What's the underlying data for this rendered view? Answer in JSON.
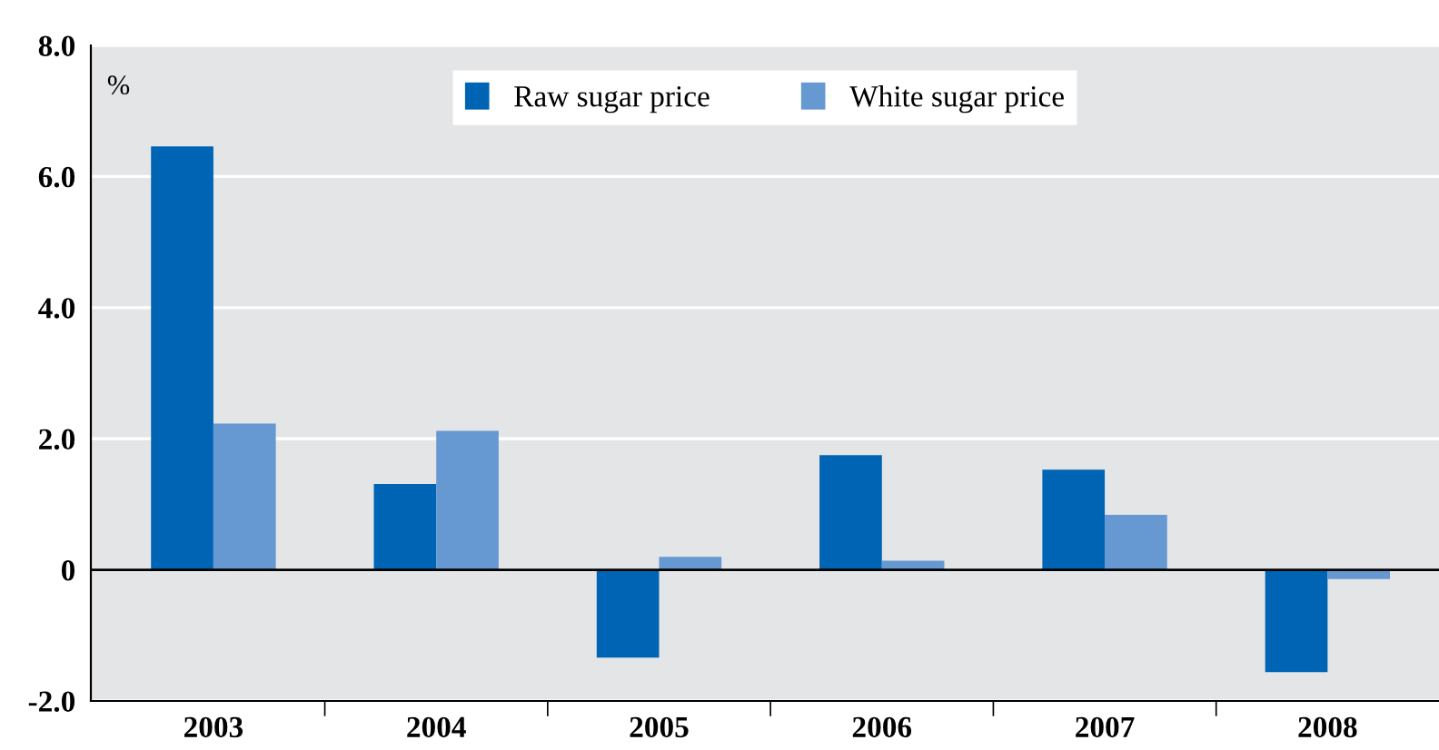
{
  "chart_data": {
    "type": "bar",
    "ylabel": "%",
    "categories": [
      "2003",
      "2004",
      "2005",
      "2006",
      "2007",
      "2008"
    ],
    "series": [
      {
        "name": "Raw sugar price",
        "color": "#0064b4",
        "values": [
          6.46,
          1.31,
          -1.34,
          1.75,
          1.53,
          -1.56
        ]
      },
      {
        "name": "White sugar price",
        "color": "#6699d2",
        "values": [
          2.23,
          2.12,
          0.2,
          0.14,
          0.84,
          -0.14
        ]
      }
    ],
    "ylim": [
      -2.0,
      8.0
    ],
    "yticks": [
      {
        "value": -2,
        "label": "-2.0"
      },
      {
        "value": 0,
        "label": "0"
      },
      {
        "value": 2,
        "label": "2.0"
      },
      {
        "value": 4,
        "label": "4.0"
      },
      {
        "value": 6,
        "label": "6.0"
      },
      {
        "value": 8,
        "label": "8.0"
      }
    ],
    "grid": "y",
    "legend": "top"
  }
}
